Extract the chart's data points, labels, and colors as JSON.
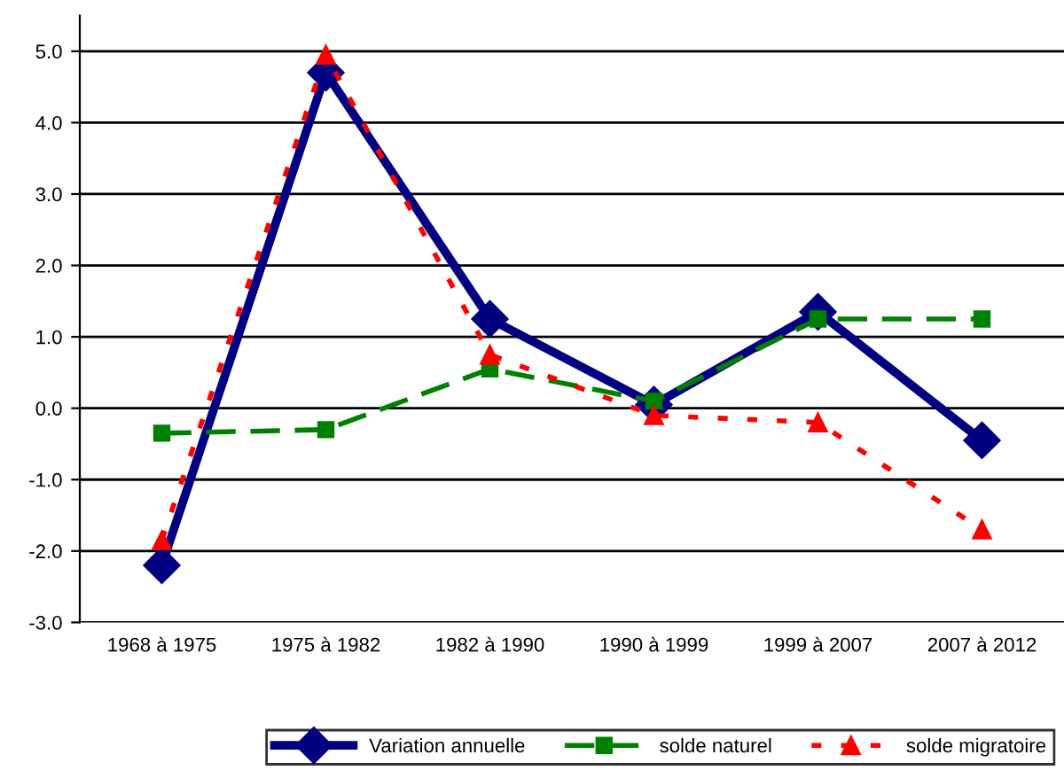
{
  "chart_data": {
    "type": "line",
    "categories": [
      "1968 à 1975",
      "1975 à 1982",
      "1982 à 1990",
      "1990 à 1999",
      "1999 à 2007",
      "2007 à 2012"
    ],
    "series": [
      {
        "name": "Variation annuelle",
        "color": "#000080",
        "values": [
          -2.2,
          4.7,
          1.25,
          0.05,
          1.35,
          -0.45
        ],
        "marker": "diamond",
        "line_style": "solid"
      },
      {
        "name": "solde naturel",
        "color": "#008000",
        "values": [
          -0.35,
          -0.3,
          0.55,
          0.1,
          1.25,
          1.25
        ],
        "marker": "square",
        "line_style": "dashed"
      },
      {
        "name": "solde migratoire",
        "color": "#ff0000",
        "values": [
          -1.85,
          4.95,
          0.75,
          -0.1,
          -0.2,
          -1.7
        ],
        "marker": "triangle",
        "line_style": "dotted"
      }
    ],
    "ylim": [
      -3.0,
      5.5
    ],
    "yticks": [
      {
        "value": -3,
        "label": "-3.0"
      },
      {
        "value": -2,
        "label": "-2.0"
      },
      {
        "value": -1,
        "label": "-1.0"
      },
      {
        "value": 0,
        "label": "0.0"
      },
      {
        "value": 1,
        "label": "1.0"
      },
      {
        "value": 2,
        "label": "2.0"
      },
      {
        "value": 3,
        "label": "3.0"
      },
      {
        "value": 4,
        "label": "4.0"
      },
      {
        "value": 5,
        "label": "5.0"
      }
    ],
    "grid": "y",
    "legend": "bottom"
  }
}
